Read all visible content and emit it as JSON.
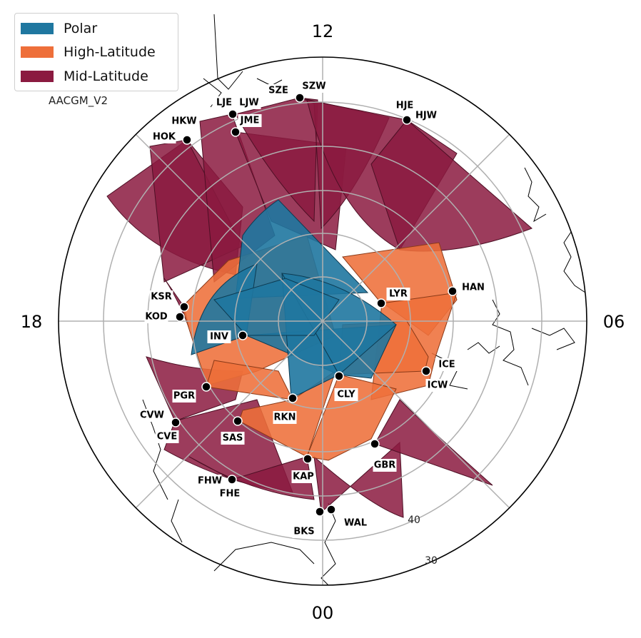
{
  "legend": {
    "items": [
      {
        "label": "Polar",
        "color": "#1f77a0"
      },
      {
        "label": "High-Latitude",
        "color": "#ee6f3a"
      },
      {
        "label": "Mid-Latitude",
        "color": "#8b1a40"
      }
    ]
  },
  "coordinate_system": "AACGM_V2",
  "mlt_labels": {
    "top": "12",
    "right": "06",
    "bottom": "00",
    "left": "18"
  },
  "latitude_labels": [
    "40",
    "30"
  ],
  "fov_colors": {
    "polar": "#1f77a0",
    "high": "#ee6f3a",
    "mid": "#8b1a40"
  },
  "stations": [
    {
      "code": "SZE"
    },
    {
      "code": "SZW"
    },
    {
      "code": "LJE"
    },
    {
      "code": "LJW"
    },
    {
      "code": "JME"
    },
    {
      "code": "HJE"
    },
    {
      "code": "HJW"
    },
    {
      "code": "HKW"
    },
    {
      "code": "HOK"
    },
    {
      "code": "HAN"
    },
    {
      "code": "LYR"
    },
    {
      "code": "KSR"
    },
    {
      "code": "KOD"
    },
    {
      "code": "INV"
    },
    {
      "code": "ICE"
    },
    {
      "code": "ICW"
    },
    {
      "code": "CLY"
    },
    {
      "code": "PGR"
    },
    {
      "code": "RKN"
    },
    {
      "code": "CVW"
    },
    {
      "code": "CVE"
    },
    {
      "code": "SAS"
    },
    {
      "code": "KAP"
    },
    {
      "code": "GBR"
    },
    {
      "code": "FHW"
    },
    {
      "code": "FHE"
    },
    {
      "code": "BKS"
    },
    {
      "code": "WAL"
    }
  ]
}
